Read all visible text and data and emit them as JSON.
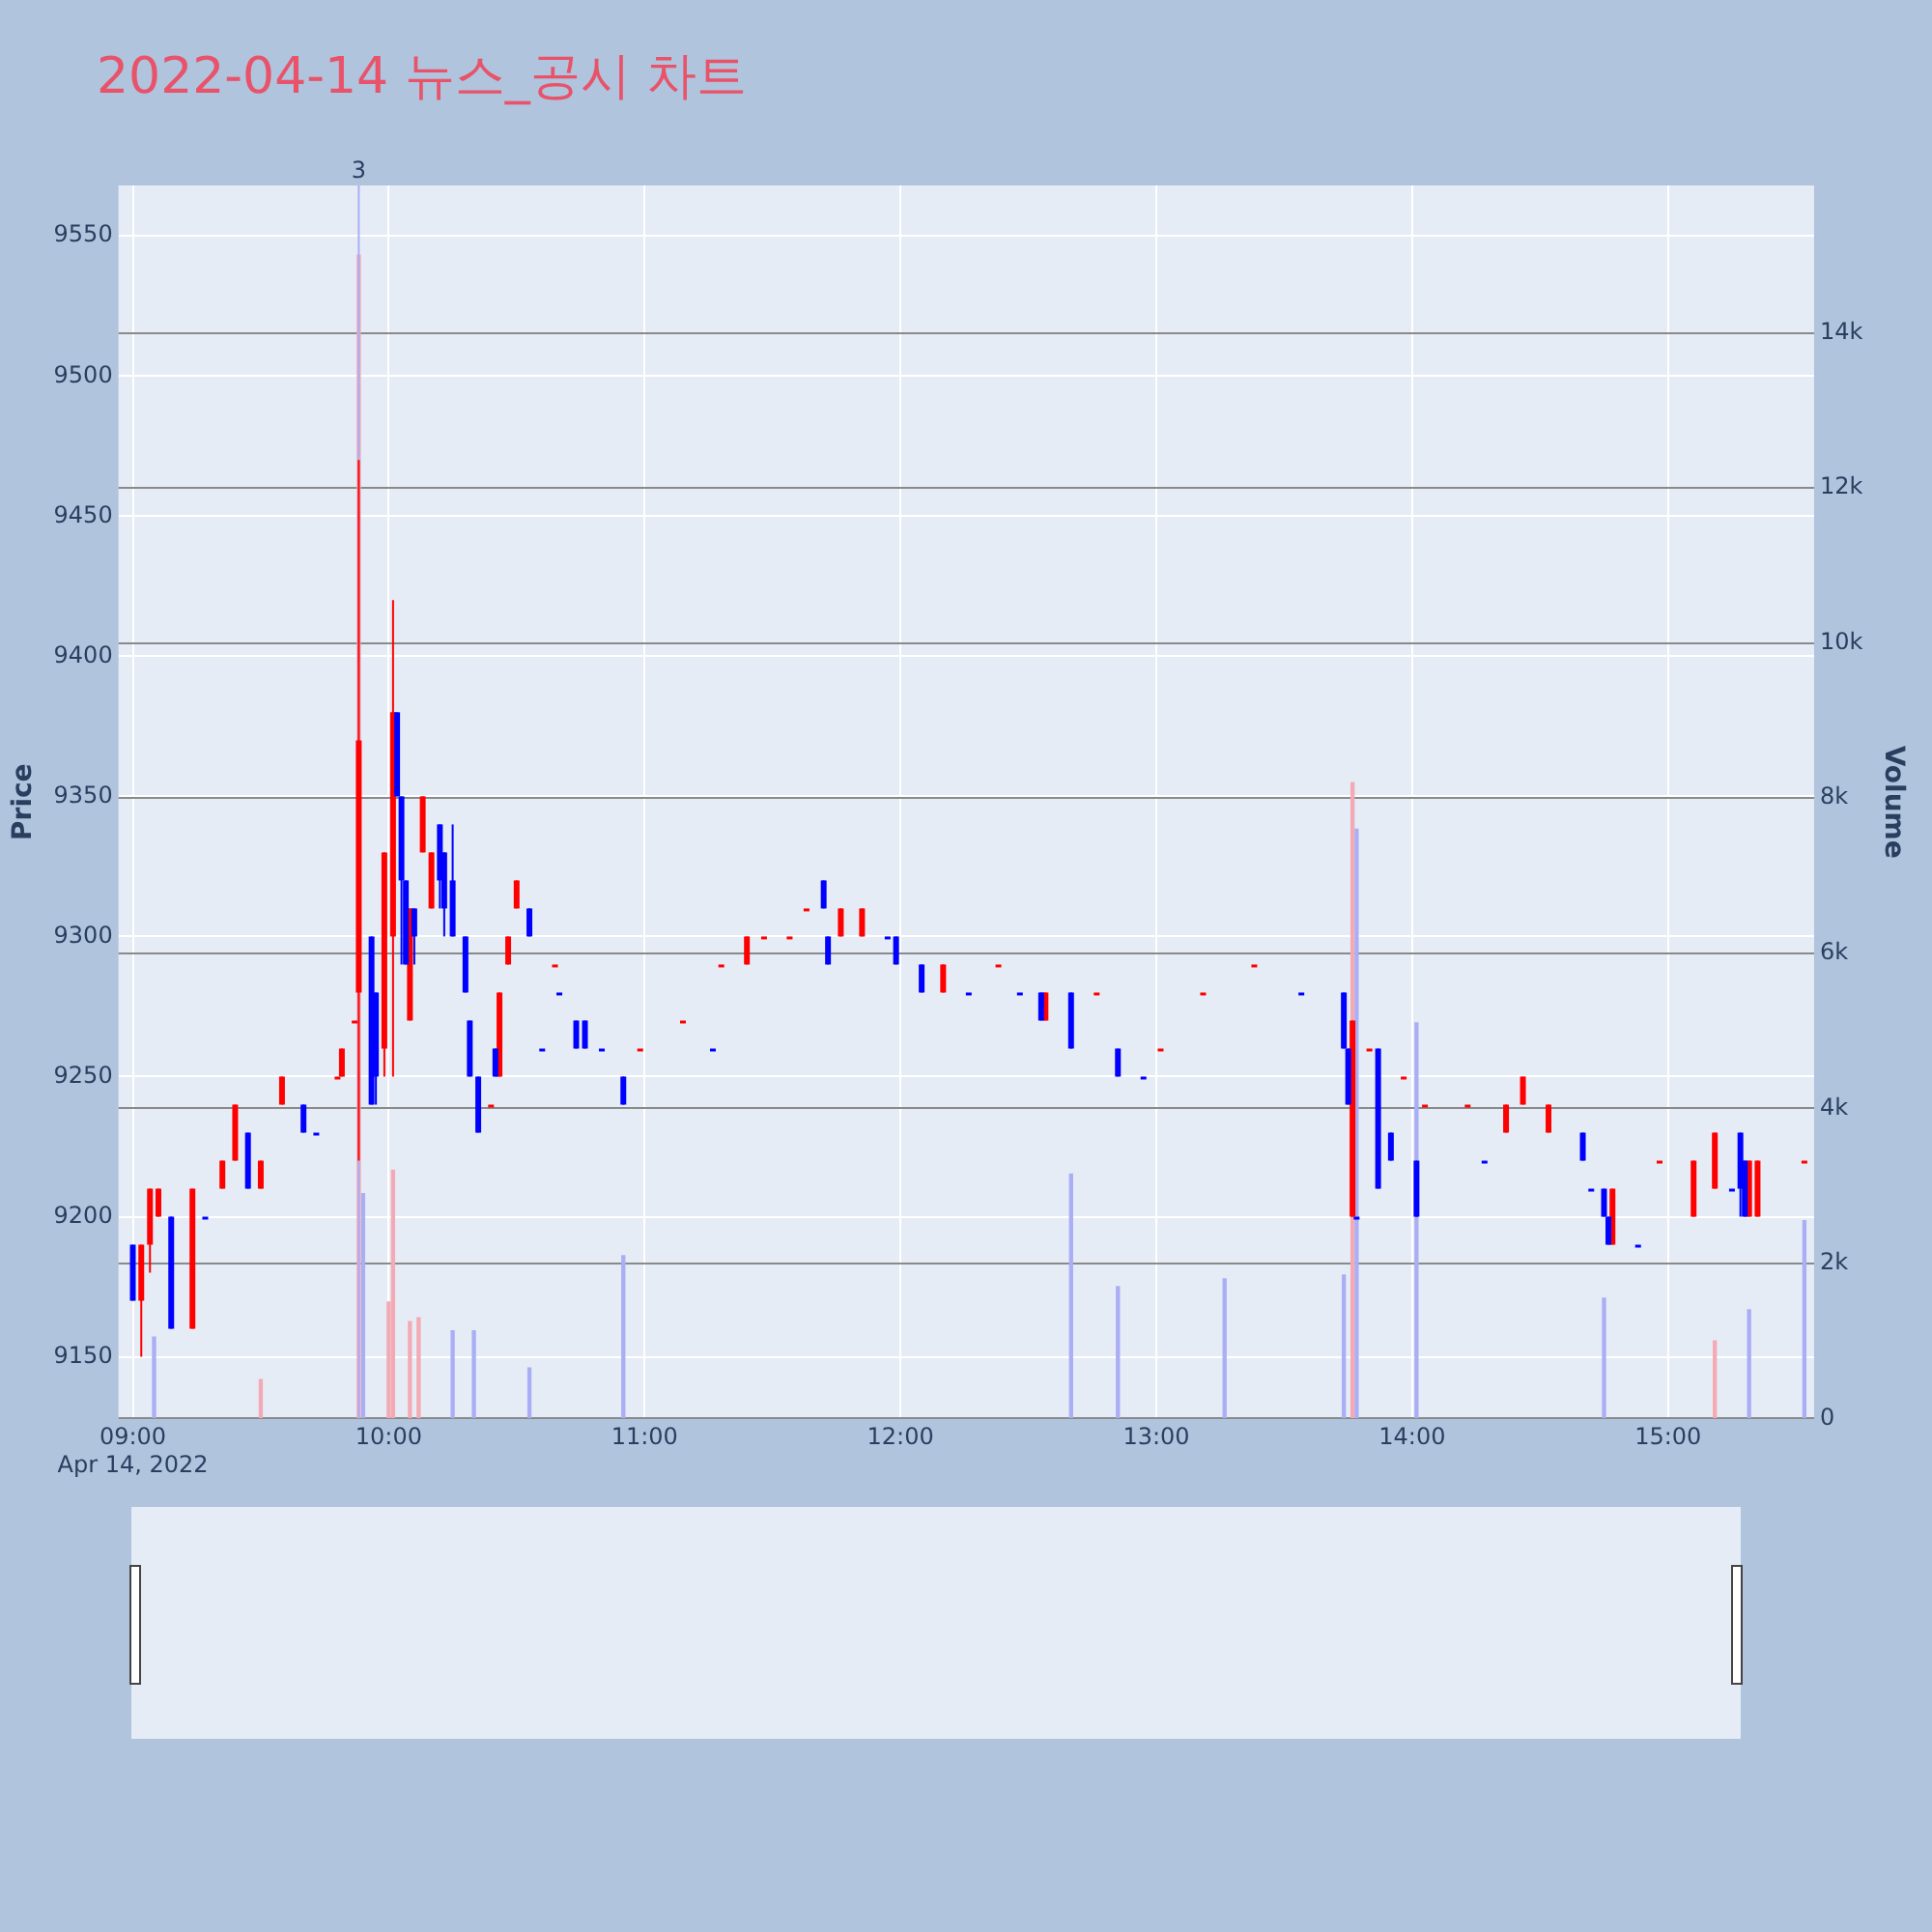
{
  "chart_data": {
    "type": "candlestick",
    "title": "2022-04-14 뉴스_공시 차트",
    "ylabel": "Price",
    "y2label": "Volume",
    "xlim": [
      8.944,
      15.571
    ],
    "xticks": [
      {
        "value": 9,
        "label": "09:00\nApr 14, 2022"
      },
      {
        "value": 10,
        "label": "10:00"
      },
      {
        "value": 11,
        "label": "11:00"
      },
      {
        "value": 12,
        "label": "12:00"
      },
      {
        "value": 13,
        "label": "13:00"
      },
      {
        "value": 14,
        "label": "14:00"
      },
      {
        "value": 15,
        "label": "15:00"
      }
    ],
    "ylim": [
      9128,
      9568
    ],
    "yticks": [
      9150,
      9200,
      9250,
      9300,
      9350,
      9400,
      9450,
      9500,
      9550
    ],
    "y2lim": [
      0,
      15900
    ],
    "y2ticks": [
      0,
      {
        "value": 2000,
        "label": "2k"
      },
      {
        "value": 4000,
        "label": "4k"
      },
      {
        "value": 6000,
        "label": "6k"
      },
      {
        "value": 8000,
        "label": "8k"
      },
      {
        "value": 10000,
        "label": "10k"
      },
      {
        "value": 12000,
        "label": "12k"
      },
      {
        "value": 14000,
        "label": "14k"
      }
    ],
    "grid": true,
    "annotations": [
      {
        "text": "3",
        "x": 9.883
      }
    ],
    "series": [
      {
        "color": "#ff0000",
        "x": [
          9.033,
          9.067,
          9.1,
          9.233,
          9.35,
          9.4,
          9.5,
          9.583,
          9.8,
          9.817,
          9.867,
          9.883,
          9.983,
          10.017,
          10.083,
          10.133,
          10.167,
          10.4,
          10.433,
          10.467,
          10.5,
          10.65,
          10.983,
          11.15,
          11.3,
          11.4,
          11.467,
          11.567,
          11.633,
          11.767,
          11.85,
          12.167,
          12.383,
          12.567,
          12.767,
          13.017,
          13.183,
          13.383,
          13.767,
          13.833,
          13.967,
          14.05,
          14.217,
          14.367,
          14.433,
          14.533,
          14.783,
          14.967,
          15.1,
          15.183,
          15.317,
          15.35,
          15.533
        ],
        "ohlc": [
          [
            9170,
            9190,
            9150,
            9190
          ],
          [
            9190,
            9210,
            9180,
            9210
          ],
          [
            9200,
            9210,
            9200,
            9210
          ],
          [
            9160,
            9210,
            9160,
            9210
          ],
          [
            9210,
            9220,
            9210,
            9220
          ],
          [
            9220,
            9240,
            9220,
            9240
          ],
          [
            9210,
            9220,
            9210,
            9220
          ],
          [
            9240,
            9250,
            9240,
            9250
          ],
          [
            9250,
            9250,
            9250,
            9250
          ],
          [
            9250,
            9260,
            9250,
            9260
          ],
          [
            9270,
            9270,
            9270,
            9270
          ],
          [
            9280,
            9470,
            9220,
            9370
          ],
          [
            9260,
            9330,
            9250,
            9330
          ],
          [
            9300,
            9420,
            9250,
            9380
          ],
          [
            9270,
            9310,
            9270,
            9310
          ],
          [
            9330,
            9350,
            9330,
            9350
          ],
          [
            9310,
            9330,
            9310,
            9330
          ],
          [
            9240,
            9240,
            9240,
            9240
          ],
          [
            9250,
            9280,
            9250,
            9280
          ],
          [
            9290,
            9300,
            9290,
            9300
          ],
          [
            9310,
            9320,
            9310,
            9320
          ],
          [
            9290,
            9290,
            9290,
            9290
          ],
          [
            9260,
            9260,
            9260,
            9260
          ],
          [
            9270,
            9270,
            9270,
            9270
          ],
          [
            9290,
            9290,
            9290,
            9290
          ],
          [
            9290,
            9300,
            9290,
            9300
          ],
          [
            9300,
            9300,
            9300,
            9300
          ],
          [
            9300,
            9300,
            9300,
            9300
          ],
          [
            9310,
            9310,
            9310,
            9310
          ],
          [
            9300,
            9310,
            9300,
            9310
          ],
          [
            9300,
            9310,
            9300,
            9310
          ],
          [
            9280,
            9290,
            9280,
            9290
          ],
          [
            9290,
            9290,
            9290,
            9290
          ],
          [
            9270,
            9280,
            9270,
            9280
          ],
          [
            9280,
            9280,
            9280,
            9280
          ],
          [
            9260,
            9260,
            9260,
            9260
          ],
          [
            9280,
            9280,
            9280,
            9280
          ],
          [
            9290,
            9290,
            9290,
            9290
          ],
          [
            9200,
            9270,
            9200,
            9270
          ],
          [
            9260,
            9260,
            9260,
            9260
          ],
          [
            9250,
            9250,
            9250,
            9250
          ],
          [
            9240,
            9240,
            9240,
            9240
          ],
          [
            9240,
            9240,
            9240,
            9240
          ],
          [
            9230,
            9240,
            9230,
            9240
          ],
          [
            9240,
            9250,
            9240,
            9250
          ],
          [
            9230,
            9240,
            9230,
            9240
          ],
          [
            9190,
            9210,
            9190,
            9210
          ],
          [
            9220,
            9220,
            9220,
            9220
          ],
          [
            9200,
            9220,
            9200,
            9220
          ],
          [
            9210,
            9230,
            9210,
            9230
          ],
          [
            9200,
            9220,
            9200,
            9220
          ],
          [
            9200,
            9220,
            9200,
            9220
          ],
          [
            9220,
            9220,
            9220,
            9220
          ]
        ]
      },
      {
        "color": "#0000ff",
        "x": [
          9.0,
          9.15,
          9.283,
          9.45,
          9.667,
          9.717,
          9.933,
          9.95,
          10.033,
          10.05,
          10.067,
          10.1,
          10.2,
          10.217,
          10.25,
          10.3,
          10.317,
          10.35,
          10.417,
          10.55,
          10.6,
          10.667,
          10.733,
          10.767,
          10.833,
          10.917,
          11.267,
          11.7,
          11.717,
          11.95,
          11.983,
          12.083,
          12.267,
          12.467,
          12.55,
          12.667,
          12.85,
          12.95,
          13.567,
          13.733,
          13.75,
          13.783,
          13.867,
          13.917,
          14.017,
          14.283,
          14.667,
          14.7,
          14.75,
          14.767,
          14.883,
          15.25,
          15.283,
          15.3
        ],
        "ohlc": [
          [
            9190,
            9190,
            9170,
            9170
          ],
          [
            9200,
            9200,
            9160,
            9160
          ],
          [
            9200,
            9200,
            9200,
            9200
          ],
          [
            9230,
            9230,
            9210,
            9210
          ],
          [
            9240,
            9240,
            9230,
            9230
          ],
          [
            9230,
            9230,
            9230,
            9230
          ],
          [
            9300,
            9300,
            9240,
            9240
          ],
          [
            9280,
            9280,
            9240,
            9250
          ],
          [
            9380,
            9380,
            9350,
            9350
          ],
          [
            9350,
            9350,
            9290,
            9320
          ],
          [
            9320,
            9320,
            9290,
            9290
          ],
          [
            9310,
            9310,
            9290,
            9300
          ],
          [
            9340,
            9340,
            9310,
            9320
          ],
          [
            9330,
            9330,
            9300,
            9310
          ],
          [
            9320,
            9340,
            9300,
            9300
          ],
          [
            9300,
            9300,
            9280,
            9280
          ],
          [
            9270,
            9270,
            9250,
            9250
          ],
          [
            9250,
            9250,
            9230,
            9230
          ],
          [
            9260,
            9260,
            9250,
            9250
          ],
          [
            9310,
            9310,
            9300,
            9300
          ],
          [
            9260,
            9260,
            9260,
            9260
          ],
          [
            9280,
            9280,
            9280,
            9280
          ],
          [
            9270,
            9270,
            9260,
            9260
          ],
          [
            9270,
            9270,
            9260,
            9260
          ],
          [
            9260,
            9260,
            9260,
            9260
          ],
          [
            9250,
            9250,
            9240,
            9240
          ],
          [
            9260,
            9260,
            9260,
            9260
          ],
          [
            9320,
            9320,
            9310,
            9310
          ],
          [
            9300,
            9300,
            9290,
            9290
          ],
          [
            9300,
            9300,
            9300,
            9300
          ],
          [
            9300,
            9300,
            9290,
            9290
          ],
          [
            9290,
            9290,
            9280,
            9280
          ],
          [
            9280,
            9280,
            9280,
            9280
          ],
          [
            9280,
            9280,
            9280,
            9280
          ],
          [
            9280,
            9280,
            9270,
            9270
          ],
          [
            9280,
            9280,
            9260,
            9260
          ],
          [
            9260,
            9260,
            9250,
            9250
          ],
          [
            9250,
            9250,
            9250,
            9250
          ],
          [
            9280,
            9280,
            9280,
            9280
          ],
          [
            9280,
            9280,
            9260,
            9260
          ],
          [
            9260,
            9260,
            9240,
            9240
          ],
          [
            9200,
            9200,
            9200,
            9200
          ],
          [
            9260,
            9260,
            9210,
            9210
          ],
          [
            9230,
            9230,
            9220,
            9220
          ],
          [
            9220,
            9220,
            9200,
            9200
          ],
          [
            9220,
            9220,
            9220,
            9220
          ],
          [
            9230,
            9230,
            9220,
            9220
          ],
          [
            9210,
            9210,
            9210,
            9210
          ],
          [
            9210,
            9210,
            9200,
            9200
          ],
          [
            9200,
            9200,
            9190,
            9190
          ],
          [
            9190,
            9190,
            9190,
            9190
          ],
          [
            9210,
            9210,
            9210,
            9210
          ],
          [
            9230,
            9230,
            9200,
            9210
          ],
          [
            9220,
            9220,
            9200,
            9200
          ]
        ]
      },
      {
        "type": "bar",
        "axis": "y2",
        "color": "#f4aab4",
        "x": [
          9.5,
          9.883,
          10.0,
          10.017,
          10.083,
          10.117,
          13.767,
          15.183
        ],
        "values": [
          500,
          15000,
          1500,
          3200,
          1250,
          1300,
          8200,
          1000
        ]
      },
      {
        "type": "bar",
        "axis": "y2",
        "color": "#a9aef5",
        "x": [
          9.083,
          9.9,
          10.25,
          10.333,
          10.55,
          10.917,
          12.667,
          12.85,
          13.267,
          13.733,
          13.783,
          14.017,
          14.75,
          15.317,
          15.533
        ],
        "values": [
          1050,
          2900,
          1130,
          1130,
          650,
          2100,
          3150,
          1700,
          1800,
          1850,
          7600,
          5100,
          1550,
          1400,
          2550
        ]
      }
    ]
  }
}
